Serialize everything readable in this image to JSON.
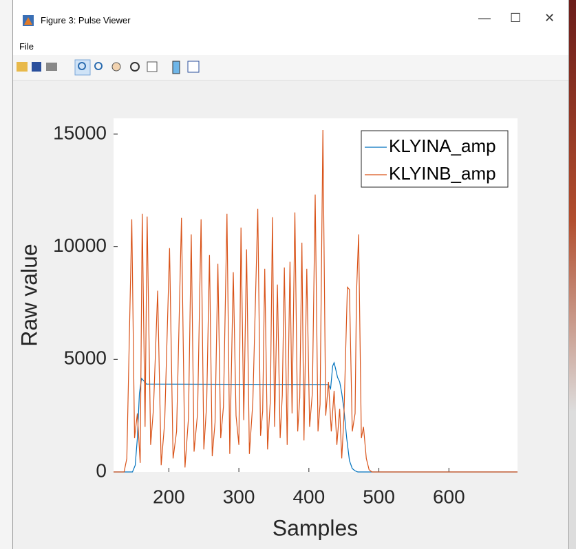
{
  "window": {
    "title": "Figure 3: Pulse Viewer",
    "menu": [
      "File"
    ]
  },
  "chart_data": {
    "type": "line",
    "x_label": "Samples",
    "y_label": "Raw value",
    "xlim": [
      121,
      698
    ],
    "ylim": [
      0,
      15700
    ],
    "xticks": [
      200,
      300,
      400,
      500,
      600
    ],
    "yticks": [
      0,
      5000,
      10000,
      15000
    ],
    "legend": "upper right",
    "series": [
      {
        "name": "KLYINA_amp",
        "color": "#0072bd",
        "x": [
          121,
          148,
          152,
          155,
          158,
          161,
          164,
          168,
          175,
          428,
          431,
          434,
          436,
          438,
          441,
          444,
          447,
          450,
          454,
          458,
          462,
          466,
          470,
          698
        ],
        "values": [
          0,
          0,
          300,
          1500,
          3500,
          4150,
          4050,
          3900,
          3900,
          3880,
          3700,
          4700,
          4850,
          4600,
          4200,
          4000,
          3500,
          2800,
          1500,
          500,
          150,
          50,
          0,
          0
        ]
      },
      {
        "name": "KLYINB_amp",
        "color": "#d95319",
        "x": [
          121,
          136,
          140,
          147,
          151,
          155,
          159,
          162,
          166,
          169,
          174,
          178,
          184,
          189,
          194,
          201,
          206,
          211,
          218,
          223,
          228,
          232,
          236,
          241,
          246,
          250,
          254,
          258,
          262,
          266,
          270,
          274,
          278,
          283,
          287,
          292,
          296,
          300,
          303,
          307,
          311,
          315,
          320,
          327,
          331,
          334,
          337,
          341,
          345,
          348,
          351,
          355,
          359,
          362,
          365,
          369,
          373,
          376,
          380,
          384,
          387,
          390,
          393,
          397,
          401,
          405,
          409,
          413,
          416,
          420,
          424,
          428,
          432,
          436,
          440,
          444,
          447,
          450,
          455,
          458,
          462,
          466,
          468,
          471,
          475,
          478,
          482,
          486,
          490,
          698
        ],
        "values": [
          0,
          0,
          600,
          11220,
          1500,
          2600,
          400,
          11460,
          2000,
          11340,
          1200,
          2800,
          8050,
          300,
          2200,
          9940,
          600,
          1800,
          11280,
          200,
          2400,
          10550,
          900,
          2600,
          11220,
          1000,
          3000,
          9630,
          700,
          2200,
          9240,
          1500,
          2900,
          11460,
          800,
          8870,
          2500,
          1200,
          10850,
          2300,
          9880,
          800,
          3100,
          11680,
          1600,
          2700,
          9020,
          1000,
          3200,
          11310,
          2000,
          8320,
          1500,
          3400,
          9080,
          1200,
          9330,
          2600,
          11520,
          1800,
          3300,
          10180,
          1400,
          9020,
          2000,
          3500,
          12320,
          1800,
          3000,
          15180,
          2500,
          4000,
          1800,
          3600,
          1200,
          2800,
          600,
          2400,
          8200,
          8100,
          1800,
          2600,
          7900,
          10550,
          1500,
          2000,
          600,
          100,
          0,
          0
        ]
      }
    ]
  }
}
